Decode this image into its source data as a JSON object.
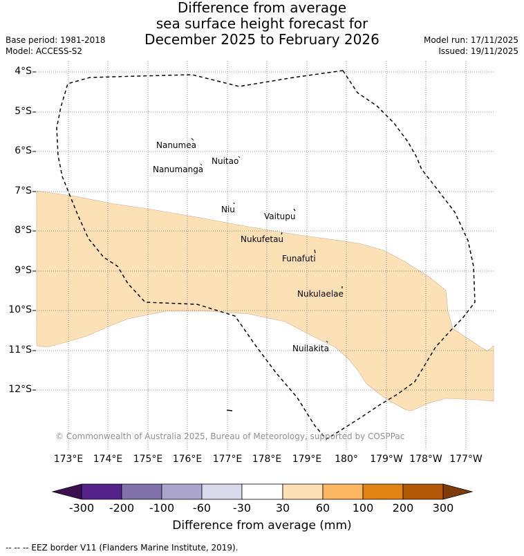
{
  "title": {
    "line1": "Difference from average",
    "line2": "sea surface height forecast for",
    "line3": "December 2025 to February 2026"
  },
  "meta": {
    "base_period": "Base period: 1981-2018",
    "model": "Model: ACCESS-S2",
    "model_run": "Model run: 17/11/2025",
    "issued": "Issued: 19/11/2025"
  },
  "map": {
    "lat_labels": [
      "4°S",
      "5°S",
      "6°S",
      "7°S",
      "8°S",
      "9°S",
      "10°S",
      "11°S",
      "12°S"
    ],
    "lon_labels": [
      "173°E",
      "174°E",
      "175°E",
      "176°E",
      "177°E",
      "178°E",
      "179°E",
      "180°",
      "179°W",
      "178°W",
      "177°W"
    ],
    "islands": [
      "Nanumea",
      "Nuitao",
      "Nanumanga",
      "Niu",
      "Vaitupu",
      "Nukufetau",
      "Funafuti",
      "Nukulaelae",
      "Nuilakita"
    ],
    "anomaly_fill_color": "#fce0b6",
    "copyright": "© Commonwealth of Australia 2025, Bureau of Meteorology, supported by COSPPac"
  },
  "colorbar": {
    "title": "Difference from average (mm)",
    "ticks": [
      "-300",
      "-200",
      "-100",
      "-60",
      "-30",
      "30",
      "60",
      "100",
      "200",
      "300"
    ],
    "colors": [
      "#3b0f50",
      "#54218a",
      "#8071ab",
      "#aca6cf",
      "#d9d9eb",
      "#ffffff",
      "#fde0b6",
      "#fdb662",
      "#e28413",
      "#b35806",
      "#7f3b08"
    ]
  },
  "footer": {
    "legend": "--  --  -- EEZ border V11 (Flanders Marine Institute, 2019)."
  }
}
